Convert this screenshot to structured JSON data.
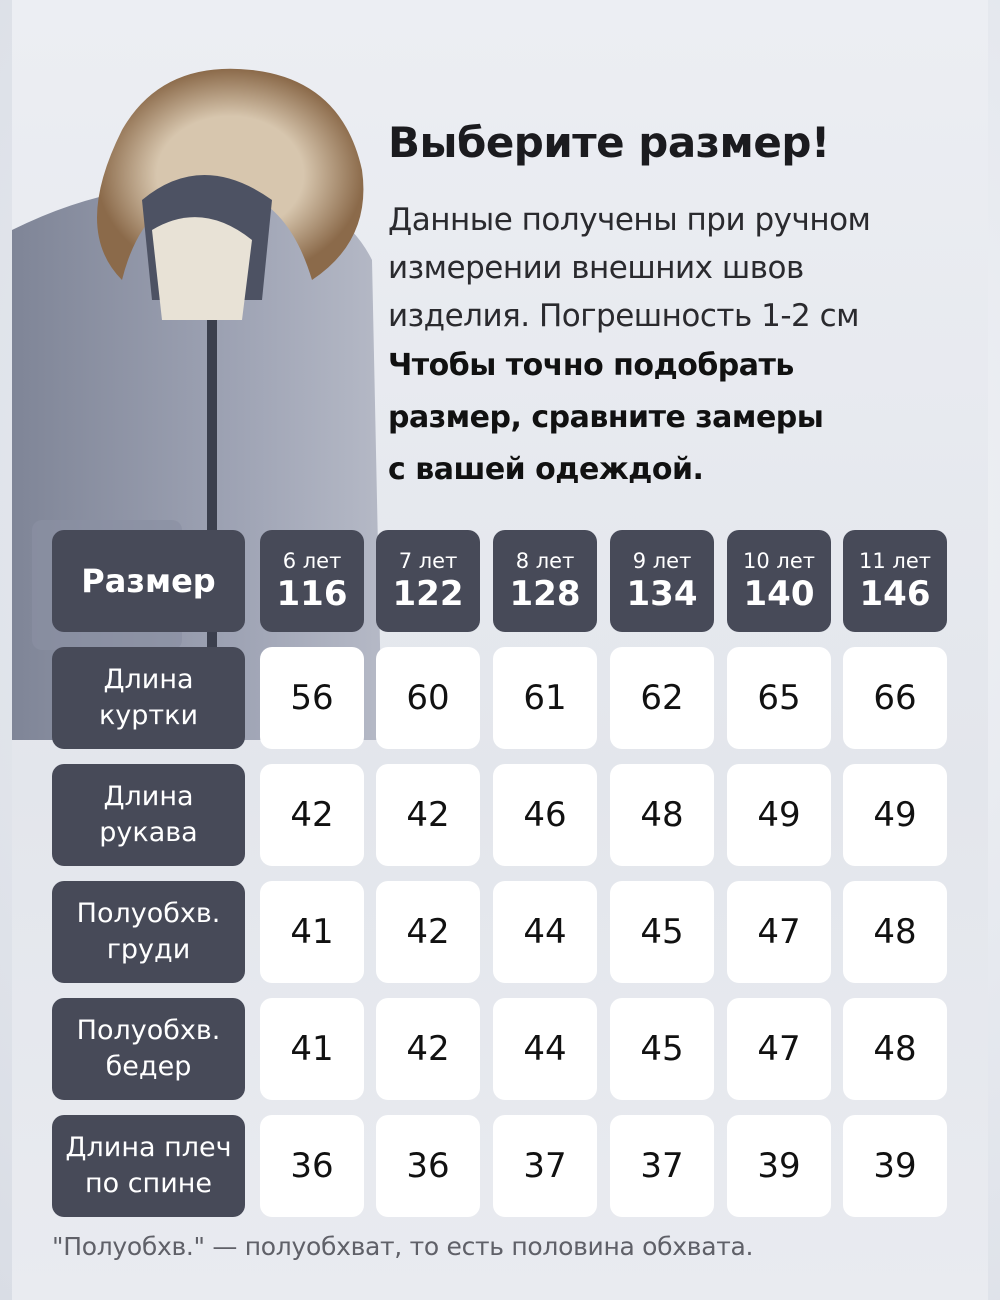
{
  "title": "Выберите размер!",
  "description": [
    "Данные получены при ручном",
    "измерении внешних швов",
    "изделия. Погрешность 1-2 см"
  ],
  "advice": [
    "Чтобы точно подобрать",
    "размер, сравните замеры",
    "с вашей одеждой."
  ],
  "table": {
    "header_label": "Размер",
    "sizes": [
      {
        "age": "6 лет",
        "size": "116"
      },
      {
        "age": "7 лет",
        "size": "122"
      },
      {
        "age": "8 лет",
        "size": "128"
      },
      {
        "age": "9 лет",
        "size": "134"
      },
      {
        "age": "10 лет",
        "size": "140"
      },
      {
        "age": "11 лет",
        "size": "146"
      }
    ],
    "rows": [
      {
        "label": [
          "Длина",
          "куртки"
        ],
        "values": [
          "56",
          "60",
          "61",
          "62",
          "65",
          "66"
        ]
      },
      {
        "label": [
          "Длина",
          "рукава"
        ],
        "values": [
          "42",
          "42",
          "46",
          "48",
          "49",
          "49"
        ]
      },
      {
        "label": [
          "Полуобхв.",
          "груди"
        ],
        "values": [
          "41",
          "42",
          "44",
          "45",
          "47",
          "48"
        ]
      },
      {
        "label": [
          "Полуобхв.",
          "бедер"
        ],
        "values": [
          "41",
          "42",
          "44",
          "45",
          "47",
          "48"
        ]
      },
      {
        "label": [
          "Длина плеч",
          "по спине"
        ],
        "values": [
          "36",
          "36",
          "37",
          "37",
          "39",
          "39"
        ]
      }
    ]
  },
  "footnote": "\"Полуобхв.\" — полуобхват, то есть половина обхвата.",
  "colors": {
    "header_bg": "#474a58",
    "value_bg": "#ffffff",
    "jacket": "#8f95a8"
  }
}
